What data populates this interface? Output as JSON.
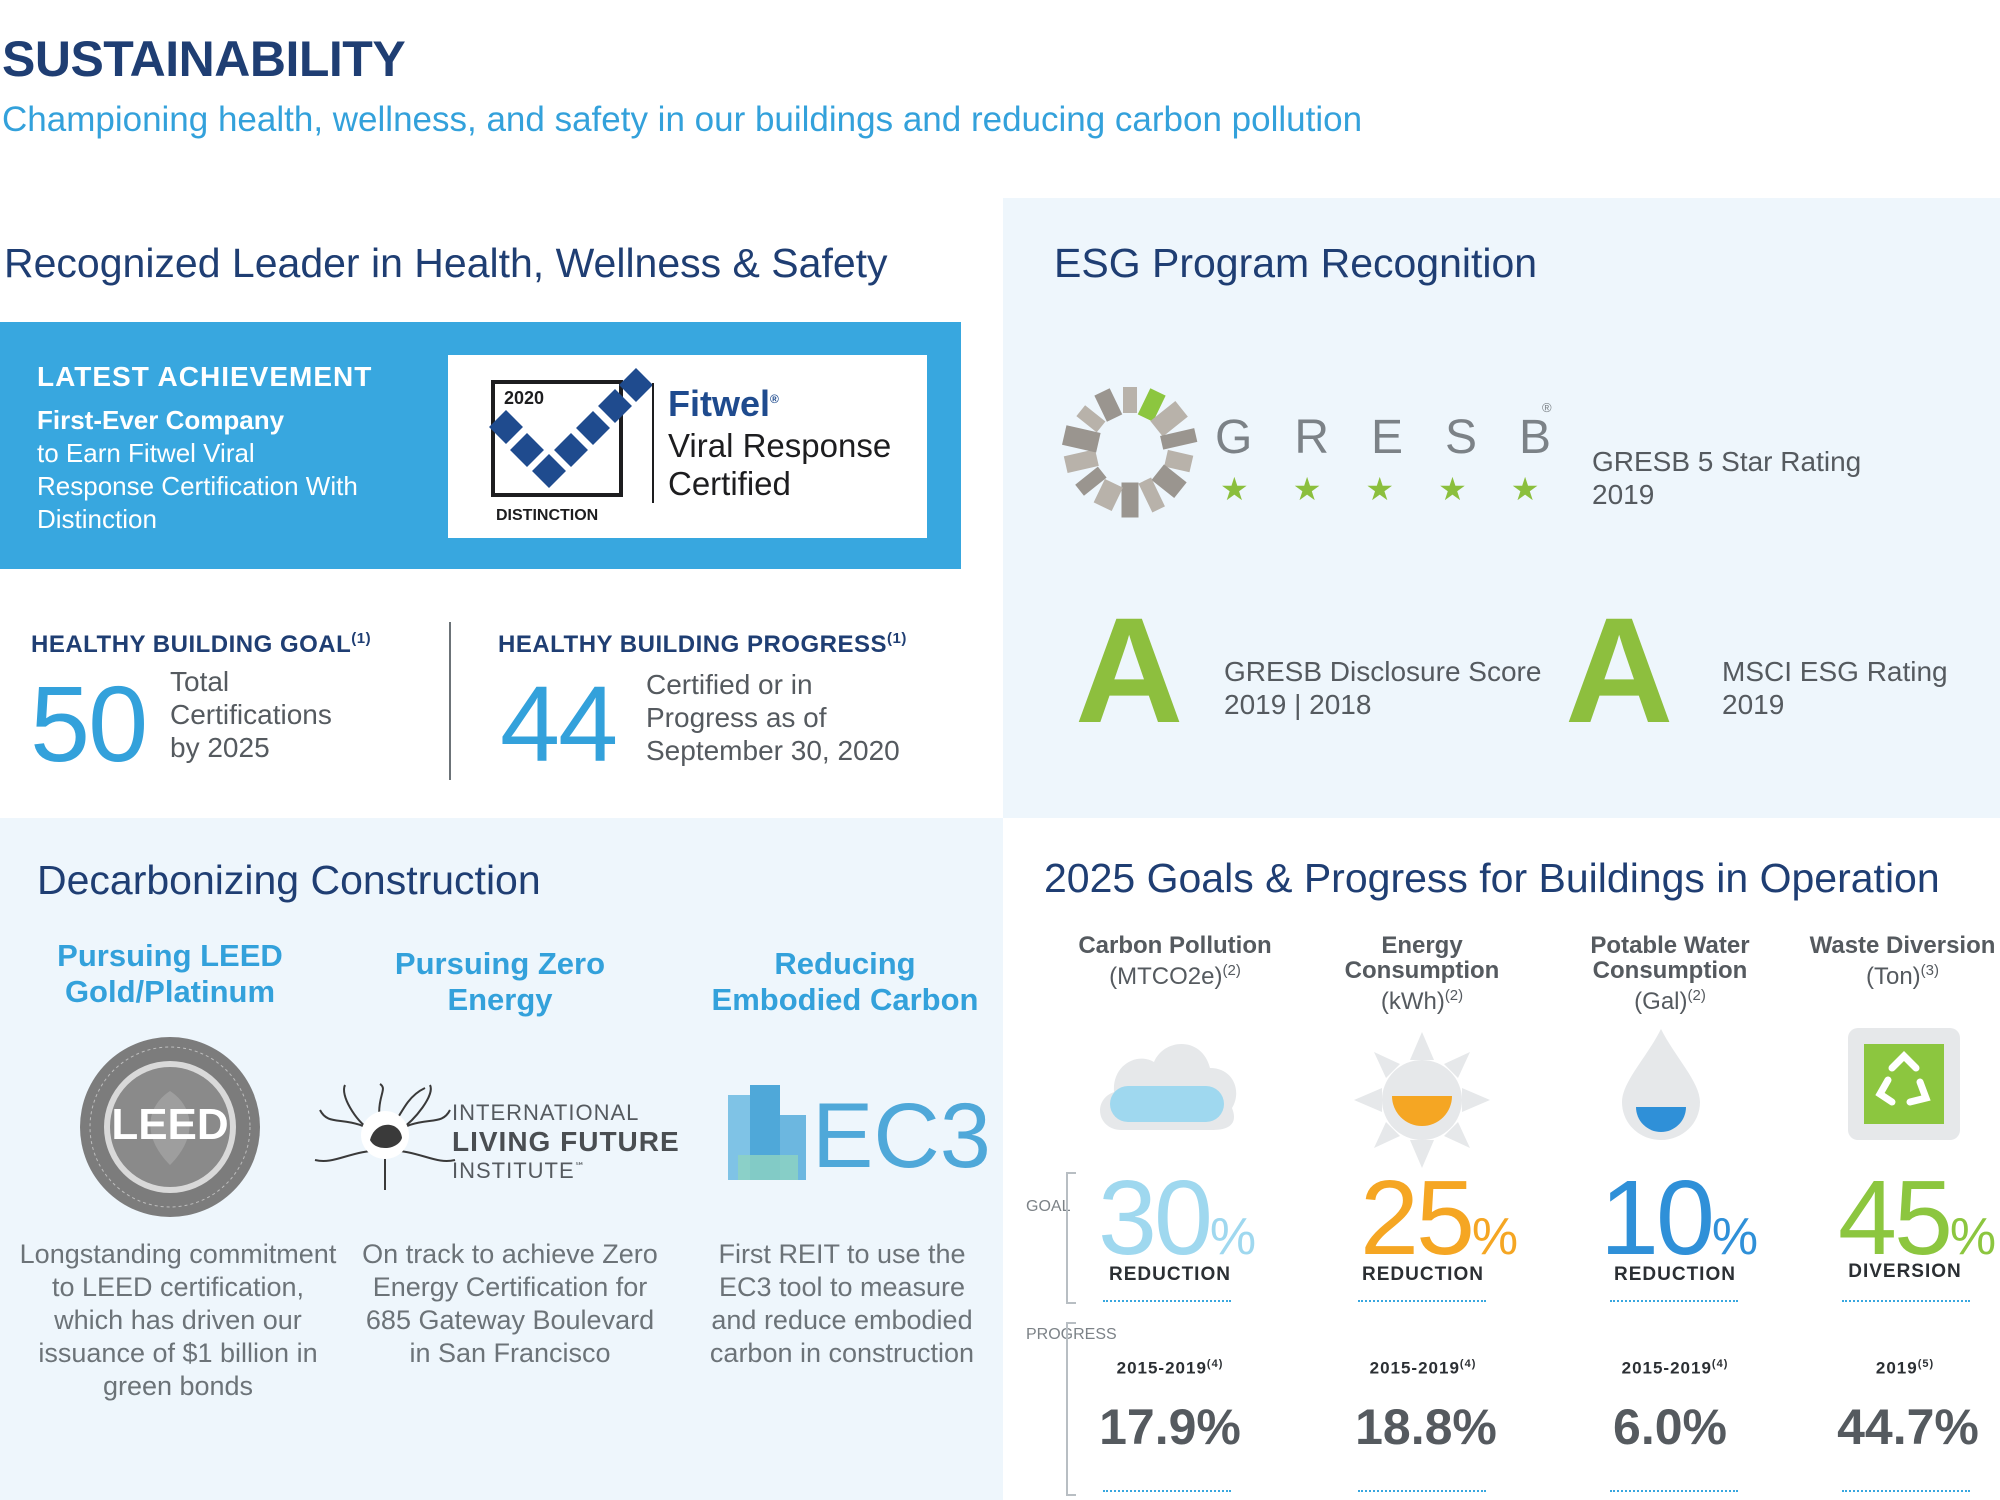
{
  "header": {
    "title": "SUSTAINABILITY",
    "subtitle": "Championing health, wellness, and safety in our buildings and reducing carbon pollution"
  },
  "health": {
    "heading": "Recognized Leader in Health, Wellness & Safety",
    "achievement": {
      "label": "LATEST ACHIEVEMENT",
      "bold_line": "First-Ever Company",
      "body": "to Earn Fitwel Viral Response Certification With Distinction"
    },
    "fitwel": {
      "year": "2020",
      "distinction": "DISTINCTION",
      "brand": "Fitwel",
      "reg": "®",
      "line1": "Viral Response",
      "line2": "Certified"
    },
    "goal": {
      "label": "HEALTHY BUILDING GOAL",
      "note": "(1)",
      "value": "50",
      "desc": "Total Certifications by 2025"
    },
    "progress": {
      "label": "HEALTHY BUILDING PROGRESS",
      "note": "(1)",
      "value": "44",
      "desc": "Certified or in Progress as of September 30, 2020"
    }
  },
  "esg": {
    "heading": "ESG Program Recognition",
    "gresb_letters": "GRESB",
    "gresb_reg": "®",
    "stars": "★★★★★",
    "star_rating": "GRESB 5 Star Rating",
    "star_year": "2019",
    "disclosure_grade": "A",
    "disclosure_label": "GRESB Disclosure Score",
    "disclosure_years": "2019 | 2018",
    "msci_grade": "A",
    "msci_label": "MSCI ESG Rating",
    "msci_year": "2019"
  },
  "decarb": {
    "heading": "Decarbonizing Construction",
    "columns": [
      {
        "title": "Pursuing LEED Gold/Platinum",
        "logo_text": "LEED",
        "desc": "Longstanding commitment to LEED certification, which has driven our issuance of $1 billion in green bonds"
      },
      {
        "title": "Pursuing Zero Energy",
        "logo_line1": "INTERNATIONAL",
        "logo_line2": "LIVING FUTURE",
        "logo_line3": "INSTITUTE",
        "logo_sm": "℠",
        "desc": "On track to achieve Zero Energy Certification for 685 Gateway Boulevard in San Francisco"
      },
      {
        "title": "Reducing Embodied Carbon",
        "logo_text": "EC3",
        "desc": "First REIT to use the EC3 tool to measure and reduce embodied carbon in construction"
      }
    ]
  },
  "goals": {
    "heading": "2025 Goals & Progress for Buildings in Operation",
    "side_goal": "GOAL",
    "side_progress": "PROGRESS",
    "items": [
      {
        "name": "Carbon Pollution",
        "unit": "(MTCO2e)",
        "note": "(2)",
        "goal": "30",
        "pct": "%",
        "goal_label": "REDUCTION",
        "period": "2015-2019",
        "period_note": "(4)",
        "progress": "17.9%",
        "color": "#9fd8ef",
        "icon": "cloud-icon"
      },
      {
        "name": "Energy Consumption",
        "unit": "(kWh)",
        "note": "(2)",
        "goal": "25",
        "pct": "%",
        "goal_label": "REDUCTION",
        "period": "2015-2019",
        "period_note": "(4)",
        "progress": "18.8%",
        "color": "#f5a623",
        "icon": "sun-icon"
      },
      {
        "name": "Potable Water Consumption",
        "unit": "(Gal)",
        "note": "(2)",
        "goal": "10",
        "pct": "%",
        "goal_label": "REDUCTION",
        "period": "2015-2019",
        "period_note": "(4)",
        "progress": "6.0%",
        "color": "#2f90d8",
        "icon": "water-drop-icon"
      },
      {
        "name": "Waste Diversion",
        "unit": "(Ton)",
        "note": "(3)",
        "goal": "45",
        "pct": "%",
        "goal_label": "DIVERSION",
        "period": "2019",
        "period_note": "(5)",
        "progress": "44.7%",
        "color": "#8cc63f",
        "icon": "recycle-icon"
      }
    ]
  },
  "colors": {
    "navy": "#1f3e73",
    "sky": "#33a1db",
    "green": "#8dbf3e",
    "panel": "#eef6fc"
  }
}
